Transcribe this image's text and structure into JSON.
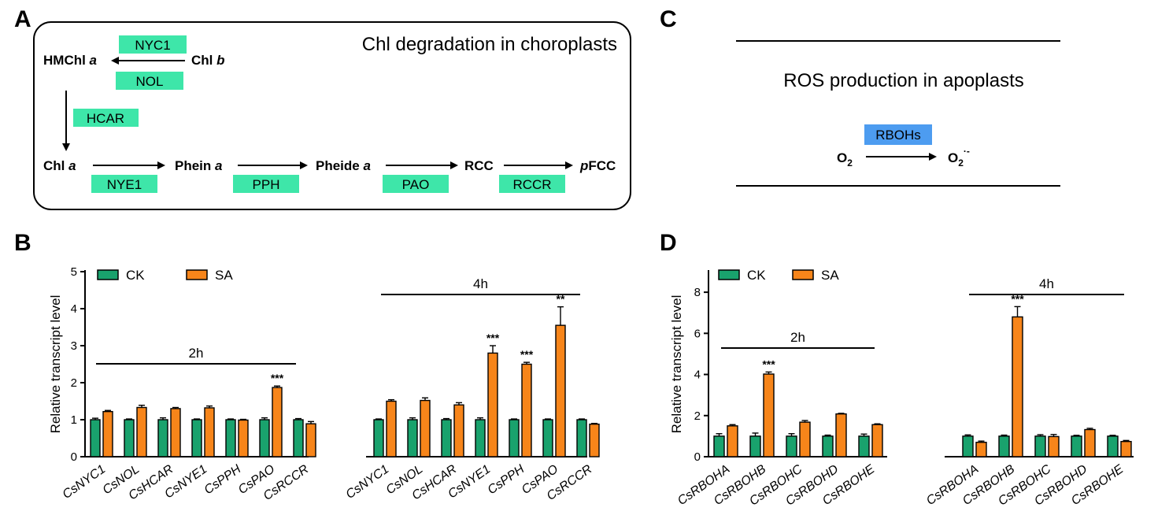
{
  "panels": {
    "A": {
      "letter": "A",
      "title": "Chl degradation in choroplasts",
      "nodes": {
        "hmchl_prefix": "HMChl ",
        "hmchl_italic": "a",
        "chlb_prefix": "Chl ",
        "chlb_italic": "b",
        "chla_prefix": "Chl ",
        "chla_italic": "a",
        "phein_prefix": "Phein ",
        "phein_italic": "a",
        "pheide_prefix": "Pheide ",
        "pheide_italic": "a",
        "rcc": "RCC",
        "pfcc_italic": "p",
        "pfcc_rest": "FCC"
      },
      "enzymes": {
        "nyc1": "NYC1",
        "nol": "NOL",
        "hcar": "HCAR",
        "nye1": "NYE1",
        "pph": "PPH",
        "pao": "PAO",
        "rccr": "RCCR"
      },
      "enzyme_color": "#3ee6a9"
    },
    "C": {
      "letter": "C",
      "title": "ROS production in apoplasts",
      "enzyme": "RBOHs",
      "enzyme_color": "#4d9cf0",
      "substrate_main": "O",
      "substrate_sub": "2",
      "product_main": "O",
      "product_sub": "2",
      "product_sup": "·-"
    },
    "B": {
      "letter": "B"
    },
    "D": {
      "letter": "D"
    }
  },
  "colors": {
    "ck": "#19a26d",
    "sa": "#f7851a"
  },
  "chart_data": [
    {
      "panel": "B",
      "type": "bar",
      "ylabel": "Relative transcript level",
      "ylim": [
        0,
        5
      ],
      "yticks": [
        "0",
        "1",
        "2",
        "3",
        "4",
        "5"
      ],
      "legend": [
        "CK",
        "SA"
      ],
      "groups": [
        {
          "label": "2h",
          "categories": [
            "CsNYC1",
            "CsNOL",
            "CsHCAR",
            "CsNYE1",
            "CsPPH",
            "CsPAO",
            "CsRCCR"
          ],
          "series": [
            {
              "name": "CK",
              "values": [
                1.0,
                1.0,
                1.0,
                1.0,
                1.0,
                1.0,
                1.0
              ],
              "errors": [
                0.04,
                0.02,
                0.05,
                0.02,
                0.02,
                0.05,
                0.03
              ]
            },
            {
              "name": "SA",
              "values": [
                1.22,
                1.33,
                1.3,
                1.32,
                0.99,
                1.87,
                0.89
              ],
              "errors": [
                0.03,
                0.06,
                0.03,
                0.05,
                0.02,
                0.04,
                0.06
              ]
            }
          ],
          "significance": [
            "",
            "",
            "",
            "",
            "",
            "***",
            ""
          ]
        },
        {
          "label": "4h",
          "categories": [
            "CsNYC1",
            "CsNOL",
            "CsHCAR",
            "CsNYE1",
            "CsPPH",
            "CsPAO",
            "CsRCCR"
          ],
          "series": [
            {
              "name": "CK",
              "values": [
                1.0,
                1.0,
                1.0,
                1.0,
                1.0,
                1.0,
                1.0
              ],
              "errors": [
                0.02,
                0.05,
                0.03,
                0.05,
                0.02,
                0.02,
                0.02
              ]
            },
            {
              "name": "SA",
              "values": [
                1.5,
                1.52,
                1.4,
                2.8,
                2.5,
                3.55,
                0.88
              ],
              "errors": [
                0.04,
                0.07,
                0.06,
                0.2,
                0.05,
                0.5,
                0.02
              ]
            }
          ],
          "significance": [
            "",
            "",
            "",
            "***",
            "***",
            "**",
            ""
          ]
        }
      ]
    },
    {
      "panel": "D",
      "type": "bar",
      "ylabel": "Relative transcript level",
      "ylim": [
        0,
        9
      ],
      "yticks": [
        "0",
        "2",
        "4",
        "6",
        "8"
      ],
      "legend": [
        "CK",
        "SA"
      ],
      "groups": [
        {
          "label": "2h",
          "categories": [
            "CsRBOHA",
            "CsRBOHB",
            "CsRBOHC",
            "CsRBOHD",
            "CsRBOHE"
          ],
          "series": [
            {
              "name": "CK",
              "values": [
                1.0,
                1.0,
                1.0,
                1.0,
                1.0
              ],
              "errors": [
                0.12,
                0.15,
                0.12,
                0.05,
                0.1
              ]
            },
            {
              "name": "SA",
              "values": [
                1.5,
                4.02,
                1.68,
                2.08,
                1.56
              ],
              "errors": [
                0.06,
                0.1,
                0.08,
                0.03,
                0.04
              ]
            }
          ],
          "significance": [
            "",
            "***",
            "",
            "",
            ""
          ]
        },
        {
          "label": "4h",
          "categories": [
            "CsRBOHA",
            "CsRBOHB",
            "CsRBOHC",
            "CsRBOHD",
            "CsRBOHE"
          ],
          "series": [
            {
              "name": "CK",
              "values": [
                1.0,
                1.0,
                1.0,
                1.0,
                1.0
              ],
              "errors": [
                0.06,
                0.05,
                0.07,
                0.04,
                0.04
              ]
            },
            {
              "name": "SA",
              "values": [
                0.7,
                6.8,
                0.98,
                1.32,
                0.74
              ],
              "errors": [
                0.06,
                0.5,
                0.1,
                0.06,
                0.05
              ]
            }
          ],
          "significance": [
            "",
            "***",
            "",
            "",
            ""
          ]
        }
      ]
    }
  ]
}
